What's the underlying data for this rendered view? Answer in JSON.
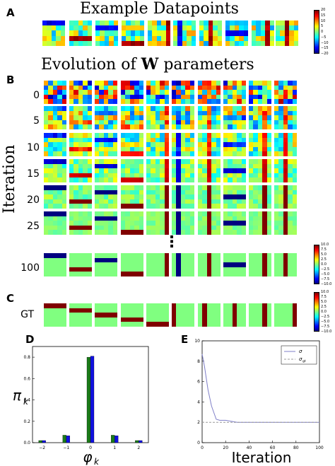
{
  "panel_labels": {
    "a": "A",
    "b": "B",
    "c": "C",
    "d": "D",
    "e": "E"
  },
  "titles": {
    "example": "Example Datapoints",
    "evolution_prefix": "Evolution of ",
    "evolution_bold": "W",
    "evolution_suffix": " parameters"
  },
  "y_axis_label": "Iteration",
  "row_labels": [
    "0",
    "5",
    "10",
    "15",
    "20",
    "25",
    "100"
  ],
  "gt_label": "GT",
  "ellipsis": "⋮",
  "colorbar_data": {
    "ticks": [
      "20",
      "15",
      "10",
      "5",
      "0",
      "−5",
      "−10",
      "−15",
      "−20"
    ]
  },
  "colorbar_w": {
    "ticks": [
      "10.0",
      "7.5",
      "5.0",
      "2.5",
      "0.0",
      "−2.5",
      "−5.0",
      "−7.5",
      "−10.0"
    ]
  },
  "colorbar_gt": {
    "ticks": [
      "10.0",
      "7.5",
      "5.0",
      "2.5",
      "0.0",
      "−2.5",
      "−5.0",
      "−7.5",
      "−10.0"
    ]
  },
  "chart_data": [
    {
      "type": "bar",
      "panel": "D",
      "categories": [
        "-2",
        "-1",
        "0",
        "1",
        "2"
      ],
      "x": [
        -2,
        -1,
        0,
        1,
        2
      ],
      "series": [
        {
          "values": [
            0.02,
            0.07,
            0.8,
            0.07,
            0.02
          ],
          "color": "#1a7a1a"
        },
        {
          "values": [
            0.02,
            0.065,
            0.81,
            0.065,
            0.02
          ],
          "color": "#1010e0"
        }
      ],
      "ylabel": "π",
      "ylabel_sub": "k",
      "xlabel": "φ",
      "xlabel_sub": "k",
      "xticks": [
        "−2",
        "−1",
        "0",
        "1",
        "2"
      ],
      "yticks": [
        "0.0",
        "0.2",
        "0.4",
        "0.6",
        "0.8"
      ],
      "ylim": [
        0,
        0.9
      ],
      "xlim": [
        -2.4,
        2.4
      ]
    },
    {
      "type": "line",
      "panel": "E",
      "series": [
        {
          "name": "σ",
          "style": "solid",
          "color": "#7f7fc8",
          "x": [
            0,
            2,
            5,
            8,
            12,
            15,
            20,
            30,
            50,
            75,
            100
          ],
          "y": [
            8.7,
            7.5,
            5.2,
            3.6,
            2.3,
            2.2,
            2.2,
            2.0,
            2.0,
            2.0,
            2.0
          ]
        },
        {
          "name": "σ",
          "name_sub": "gt",
          "style": "dashed",
          "color": "#999999",
          "x": [
            0,
            100
          ],
          "y": [
            2.0,
            2.0
          ]
        }
      ],
      "xlabel": "Iteration",
      "xticks": [
        "0",
        "20",
        "40",
        "60",
        "80",
        "100"
      ],
      "yticks": [
        "0",
        "2",
        "4",
        "6",
        "8",
        "10"
      ],
      "xlim": [
        0,
        100
      ],
      "ylim": [
        0,
        10
      ],
      "legend": "top-right"
    }
  ],
  "colors": {
    "jet_mid": "#7fff7f",
    "maroon": "#7f0000",
    "navy": "#00007f"
  }
}
